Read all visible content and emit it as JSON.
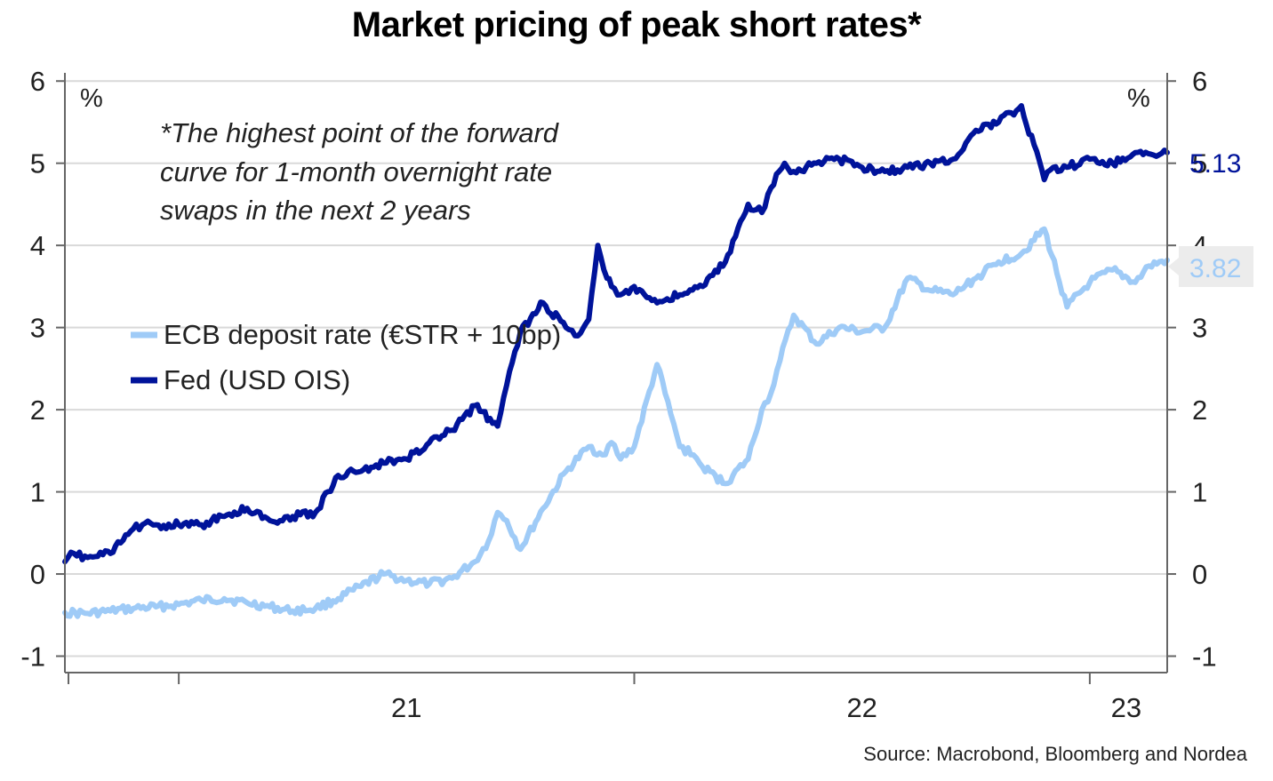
{
  "title": "Market pricing of peak short rates*",
  "footnote": [
    "*The highest point of the forward",
    "curve for 1-month overnight rate",
    "swaps in the next 2 years"
  ],
  "source": "Source: Macrobond, Bloomberg and Nordea",
  "colors": {
    "ecb": "#9fcbf7",
    "fed": "#00139a",
    "grid": "#d9d9d9",
    "axis": "#666666"
  },
  "chart_data": {
    "type": "line",
    "ylabel_left": "%",
    "ylabel_right": "%",
    "ylim": [
      -1.2,
      6.1
    ],
    "yticks": [
      "6",
      "5",
      "4",
      "3",
      "2",
      "1",
      "0",
      "-1"
    ],
    "xlim": [
      2020.75,
      2023.17
    ],
    "x_tick_labels": [
      "21",
      "22",
      "23"
    ],
    "grid": true,
    "legend_position": "left-middle",
    "series": [
      {
        "name": "ECB deposit rate (€STR + 10bp)",
        "color": "#9fcbf7",
        "last_label": "3.82",
        "x": [
          2020.75,
          2020.8,
          2020.85,
          2020.9,
          2020.95,
          2021.0,
          2021.05,
          2021.1,
          2021.15,
          2021.2,
          2021.25,
          2021.3,
          2021.35,
          2021.4,
          2021.45,
          2021.5,
          2021.55,
          2021.6,
          2021.65,
          2021.68,
          2021.7,
          2021.72,
          2021.75,
          2021.8,
          2021.85,
          2021.9,
          2021.93,
          2021.95,
          2021.97,
          2022.0,
          2022.05,
          2022.08,
          2022.1,
          2022.13,
          2022.15,
          2022.2,
          2022.25,
          2022.28,
          2022.3,
          2022.32,
          2022.35,
          2022.4,
          2022.45,
          2022.5,
          2022.55,
          2022.6,
          2022.65,
          2022.7,
          2022.75,
          2022.8,
          2022.85,
          2022.9,
          2022.95,
          2023.0,
          2023.05,
          2023.1,
          2023.13,
          2023.17
        ],
        "values": [
          -0.47,
          -0.48,
          -0.45,
          -0.42,
          -0.4,
          -0.37,
          -0.32,
          -0.3,
          -0.35,
          -0.4,
          -0.45,
          -0.42,
          -0.3,
          -0.15,
          0.0,
          -0.08,
          -0.12,
          -0.05,
          0.15,
          0.4,
          0.75,
          0.65,
          0.3,
          0.8,
          1.25,
          1.55,
          1.45,
          1.6,
          1.4,
          1.55,
          2.55,
          1.95,
          1.55,
          1.45,
          1.3,
          1.1,
          1.4,
          2.0,
          2.2,
          2.6,
          3.15,
          2.8,
          3.0,
          2.95,
          3.0,
          3.6,
          3.45,
          3.4,
          3.6,
          3.8,
          3.9,
          4.2,
          3.25,
          3.55,
          3.7,
          3.55,
          3.75,
          3.82
        ]
      },
      {
        "name": "Fed (USD OIS)",
        "color": "#00139a",
        "last_label": "5.13",
        "x": [
          2020.75,
          2020.77,
          2020.8,
          2020.85,
          2020.9,
          2020.92,
          2020.95,
          2021.0,
          2021.05,
          2021.1,
          2021.15,
          2021.2,
          2021.25,
          2021.3,
          2021.35,
          2021.4,
          2021.45,
          2021.5,
          2021.55,
          2021.6,
          2021.65,
          2021.7,
          2021.72,
          2021.75,
          2021.8,
          2021.85,
          2021.87,
          2021.9,
          2021.92,
          2021.94,
          2021.95,
          2021.97,
          2022.0,
          2022.05,
          2022.1,
          2022.15,
          2022.2,
          2022.25,
          2022.28,
          2022.3,
          2022.33,
          2022.35,
          2022.4,
          2022.45,
          2022.5,
          2022.55,
          2022.6,
          2022.65,
          2022.7,
          2022.75,
          2022.8,
          2022.85,
          2022.9,
          2022.92,
          2022.93,
          2022.95,
          2023.0,
          2023.05,
          2023.1,
          2023.14,
          2023.17
        ],
        "values": [
          0.15,
          0.25,
          0.2,
          0.25,
          0.55,
          0.6,
          0.6,
          0.6,
          0.6,
          0.7,
          0.8,
          0.65,
          0.7,
          0.75,
          1.2,
          1.25,
          1.35,
          1.4,
          1.6,
          1.75,
          2.05,
          1.8,
          2.3,
          2.95,
          3.3,
          3.0,
          2.9,
          3.1,
          4.0,
          3.6,
          3.5,
          3.4,
          3.5,
          3.3,
          3.4,
          3.5,
          3.8,
          4.5,
          4.4,
          4.7,
          5.0,
          4.9,
          5.0,
          5.05,
          4.95,
          4.9,
          4.95,
          5.0,
          5.05,
          5.4,
          5.5,
          5.7,
          4.8,
          4.95,
          4.9,
          4.95,
          5.05,
          5.0,
          5.13,
          5.1,
          5.13
        ]
      }
    ]
  }
}
